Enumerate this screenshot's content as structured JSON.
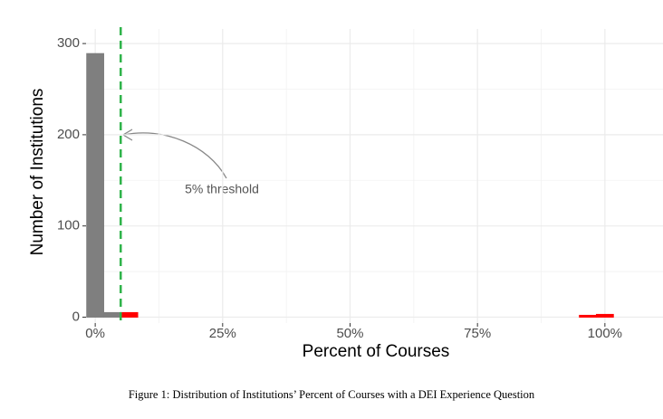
{
  "chart_data": {
    "type": "histogram",
    "title": "Figure 1: Distribution of Institutions’ Percent of Courses with a DEI Experience Question",
    "x_label": "Percent of Courses",
    "y_label": "Number of Institutions",
    "bins": [
      -1.667,
      1.667,
      5,
      8.333,
      11.667,
      15,
      18.333,
      21.667,
      25,
      28.333,
      31.667,
      35,
      38.333,
      41.667,
      45,
      48.333,
      51.667,
      55,
      58.333,
      61.667,
      65,
      68.333,
      71.667,
      75,
      78.333,
      81.667,
      85,
      88.333,
      91.667,
      95,
      98.333,
      101.667
    ],
    "values": [
      289,
      5,
      5,
      0,
      0,
      0,
      0,
      0,
      0,
      0,
      0,
      0,
      0,
      0,
      0,
      0,
      0,
      0,
      0,
      0,
      0,
      0,
      0,
      0,
      0,
      0,
      0,
      0,
      0,
      2,
      3
    ],
    "below_color": "#7f7f7f",
    "above_color": "#ff0000",
    "threshold": 5,
    "threshold_color": "#2fb34a",
    "threshold_label": "5% threshold",
    "xlim": [
      -1.8,
      111.4
    ],
    "ylim": [
      -6.5,
      316
    ],
    "xticks": [
      {
        "value": 0,
        "label": "0%"
      },
      {
        "value": 25,
        "label": "25%"
      },
      {
        "value": 50,
        "label": "50%"
      },
      {
        "value": 75,
        "label": "75%"
      },
      {
        "value": 100,
        "label": "100%"
      }
    ],
    "yticks": [
      0,
      100,
      200,
      300
    ],
    "x_minor_grid": [
      12.5,
      37.5,
      62.5,
      87.5
    ],
    "y_minor_grid": [
      50,
      150,
      250
    ],
    "grid": true
  }
}
